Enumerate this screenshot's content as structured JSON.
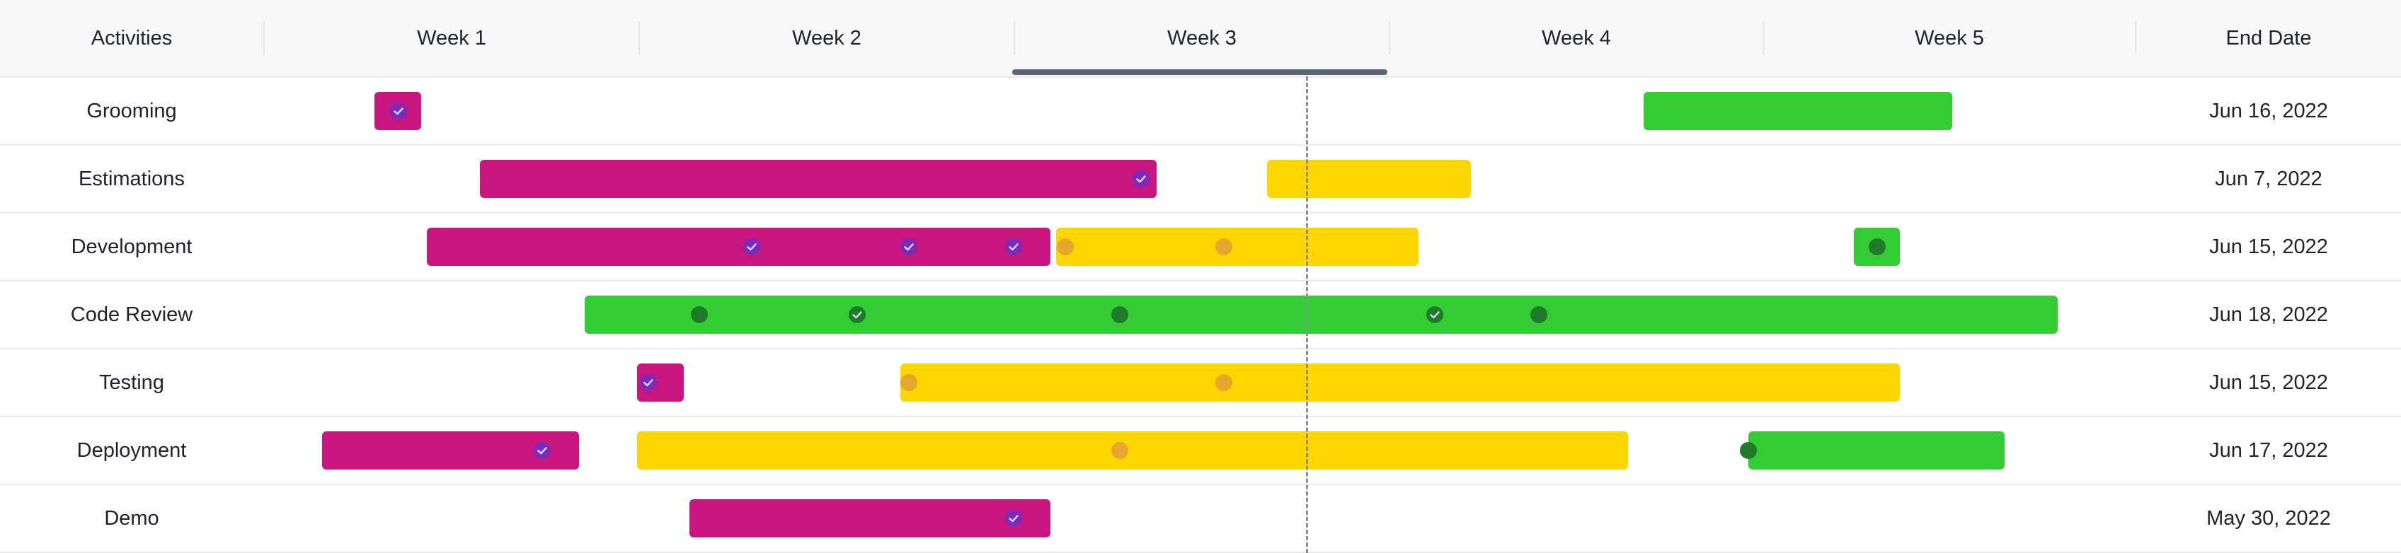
{
  "header": {
    "activities_label": "Activities",
    "end_date_label": "End Date",
    "weeks": [
      "Week 1",
      "Week 2",
      "Week 3",
      "Week 4",
      "Week 5"
    ],
    "active_week": "Week 3"
  },
  "colors": {
    "done": "#c8157f",
    "in_progress": "#ffd500",
    "planned": "#33cc33",
    "done_dot": "#7a2bb8",
    "in_progress_dot": "#e8a72c",
    "planned_dot": "#1f7a2a"
  },
  "chart_data": {
    "type": "gantt",
    "x_unit": "week",
    "x_range": [
      0.3,
      5.4
    ],
    "today": 3.14,
    "rows": [
      {
        "activity": "Grooming",
        "end_date": "Jun 16, 2022",
        "segments": [
          {
            "status": "done",
            "start": 0.6,
            "end": 0.727
          },
          {
            "status": "planned",
            "start": 4.06,
            "end": 4.902
          }
        ],
        "markers": [
          {
            "status": "done",
            "at": 0.664,
            "checked": true
          }
        ]
      },
      {
        "activity": "Estimations",
        "end_date": "Jun 7, 2022",
        "segments": [
          {
            "status": "done",
            "start": 0.886,
            "end": 2.732
          },
          {
            "status": "in_progress",
            "start": 3.033,
            "end": 3.59
          }
        ],
        "markers": [
          {
            "status": "done",
            "at": 2.689,
            "checked": true
          }
        ]
      },
      {
        "activity": "Development",
        "end_date": "Jun 15, 2022",
        "segments": [
          {
            "status": "done",
            "start": 0.743,
            "end": 2.442
          },
          {
            "status": "in_progress",
            "start": 2.459,
            "end": 3.446
          },
          {
            "status": "planned",
            "start": 4.633,
            "end": 4.76
          }
        ],
        "markers": [
          {
            "status": "done",
            "at": 1.628,
            "checked": true
          },
          {
            "status": "done",
            "at": 2.056,
            "checked": true
          },
          {
            "status": "done",
            "at": 2.342,
            "checked": true
          },
          {
            "status": "in_progress",
            "at": 2.484,
            "checked": false
          },
          {
            "status": "in_progress",
            "at": 2.915,
            "checked": false
          },
          {
            "status": "planned",
            "at": 4.698,
            "checked": false
          }
        ]
      },
      {
        "activity": "Code Review",
        "end_date": "Jun 18, 2022",
        "segments": [
          {
            "status": "planned",
            "start": 1.173,
            "end": 5.189
          }
        ],
        "markers": [
          {
            "status": "planned",
            "at": 1.486,
            "checked": false
          },
          {
            "status": "planned",
            "at": 1.915,
            "checked": true
          },
          {
            "status": "planned",
            "at": 2.631,
            "checked": false
          },
          {
            "status": "planned",
            "at": 3.49,
            "checked": true
          },
          {
            "status": "planned",
            "at": 3.775,
            "checked": false
          }
        ]
      },
      {
        "activity": "Testing",
        "end_date": "Jun 15, 2022",
        "segments": [
          {
            "status": "done",
            "start": 1.316,
            "end": 1.443
          },
          {
            "status": "in_progress",
            "start": 2.033,
            "end": 4.76
          }
        ],
        "markers": [
          {
            "status": "done",
            "at": 1.346,
            "checked": true
          },
          {
            "status": "in_progress",
            "at": 2.056,
            "checked": false
          },
          {
            "status": "in_progress",
            "at": 2.915,
            "checked": false
          }
        ]
      },
      {
        "activity": "Deployment",
        "end_date": "Jun 17, 2022",
        "segments": [
          {
            "status": "done",
            "start": 0.457,
            "end": 1.157
          },
          {
            "status": "in_progress",
            "start": 1.316,
            "end": 4.018
          },
          {
            "status": "planned",
            "start": 4.346,
            "end": 5.045
          }
        ],
        "markers": [
          {
            "status": "done",
            "at": 1.056,
            "checked": true
          },
          {
            "status": "in_progress",
            "at": 2.631,
            "checked": false
          },
          {
            "status": "planned",
            "at": 4.346,
            "checked": false
          }
        ]
      },
      {
        "activity": "Demo",
        "end_date": "May 30, 2022",
        "segments": [
          {
            "status": "done",
            "start": 1.459,
            "end": 2.442
          }
        ],
        "markers": [
          {
            "status": "done",
            "at": 2.342,
            "checked": true
          }
        ]
      }
    ]
  }
}
